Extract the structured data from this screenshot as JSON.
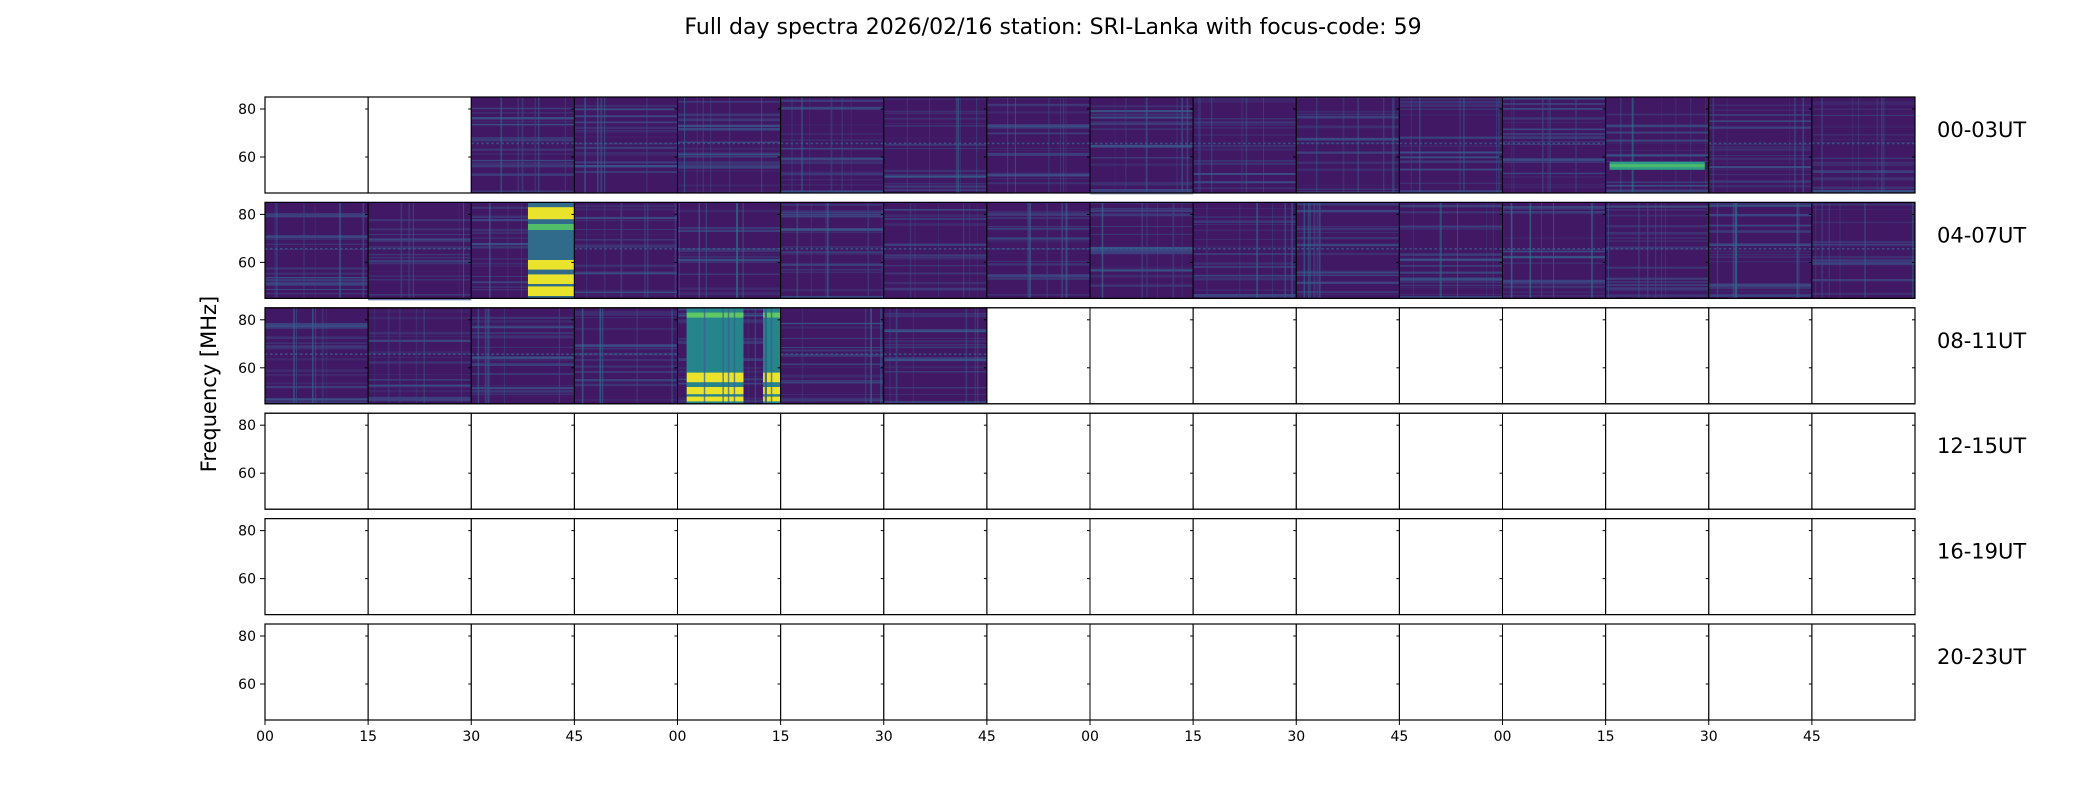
{
  "chart_data": {
    "type": "heatmap",
    "title": "Full day spectra 2026/02/16 station: SRI-Lanka with focus-code: 59",
    "ylabel": "Frequency [MHz]",
    "xlabel": "",
    "ylim": [
      45,
      85
    ],
    "y_ticks": [
      "80",
      "60"
    ],
    "x_ticks": [
      "00",
      "15",
      "30",
      "45",
      "00",
      "15",
      "30",
      "45",
      "00",
      "15",
      "30",
      "45",
      "00",
      "15",
      "30",
      "45"
    ],
    "colormap": "viridis",
    "colors": {
      "low": "#440154",
      "mid": "#21918c",
      "high": "#fde725"
    },
    "rows": [
      {
        "label": "00-03UT",
        "panels": [
          "empty",
          "empty",
          "quiet",
          "quiet",
          "quiet",
          "quiet",
          "quiet",
          "quiet",
          "quiet",
          "quiet",
          "quiet",
          "quiet",
          "quiet",
          "bright-band",
          "quiet",
          "quiet"
        ]
      },
      {
        "label": "04-07UT",
        "panels": [
          "quiet",
          "quiet",
          "burst",
          "quiet",
          "quiet",
          "quiet",
          "quiet",
          "quiet",
          "quiet",
          "quiet",
          "quiet",
          "quiet",
          "quiet",
          "quiet",
          "quiet",
          "quiet"
        ]
      },
      {
        "label": "08-11UT",
        "panels": [
          "quiet",
          "quiet",
          "quiet",
          "quiet",
          "burst",
          "quiet",
          "quiet",
          "empty",
          "empty",
          "empty",
          "empty",
          "empty",
          "empty",
          "empty",
          "empty",
          "empty"
        ]
      },
      {
        "label": "12-15UT",
        "panels": [
          "empty",
          "empty",
          "empty",
          "empty",
          "empty",
          "empty",
          "empty",
          "empty",
          "empty",
          "empty",
          "empty",
          "empty",
          "empty",
          "empty",
          "empty",
          "empty"
        ]
      },
      {
        "label": "16-19UT",
        "panels": [
          "empty",
          "empty",
          "empty",
          "empty",
          "empty",
          "empty",
          "empty",
          "empty",
          "empty",
          "empty",
          "empty",
          "empty",
          "empty",
          "empty",
          "empty",
          "empty"
        ]
      },
      {
        "label": "20-23UT",
        "panels": [
          "empty",
          "empty",
          "empty",
          "empty",
          "empty",
          "empty",
          "empty",
          "empty",
          "empty",
          "empty",
          "empty",
          "empty",
          "empty",
          "empty",
          "empty",
          "empty"
        ]
      }
    ]
  }
}
